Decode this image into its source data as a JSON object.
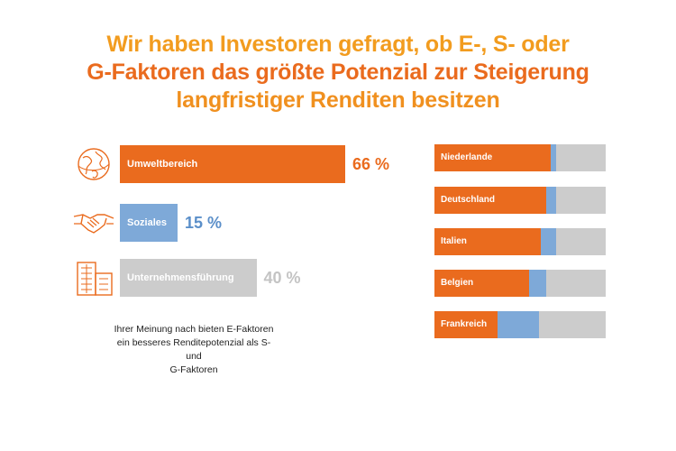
{
  "title": {
    "line1": "Wir haben Investoren gefragt, ob E-, S- oder",
    "line2": "G-Faktoren das größte Potenzial zur Steigerung",
    "line3": "langfristiger Renditen besitzen"
  },
  "note": {
    "line1": "Ihrer Meinung nach bieten E-Faktoren",
    "line2": "ein besseres Renditepotenzial als S- und",
    "line3": "G-Faktoren"
  },
  "colors": {
    "environment": "#ea6b1e",
    "social": "#7ea9d8",
    "governance": "#cccccc",
    "title_orange": "#f29c1f"
  },
  "chart_data": [
    {
      "type": "bar",
      "orientation": "horizontal",
      "categories": [
        "Umweltbereich",
        "Soziales",
        "Unternehmensführung"
      ],
      "values": [
        66,
        15,
        40
      ],
      "value_labels": [
        "66 %",
        "15 %",
        "40 %"
      ],
      "icons": [
        "globe-icon",
        "handshake-icon",
        "buildings-icon"
      ],
      "colors": [
        "#ea6b1e",
        "#7ea9d8",
        "#cccccc"
      ]
    },
    {
      "type": "bar",
      "orientation": "horizontal",
      "stacked": true,
      "categories": [
        "Niederlande",
        "Deutschland",
        "Italien",
        "Belgien",
        "Frankreich"
      ],
      "series": [
        {
          "values": [
            68,
            65,
            62,
            55,
            37
          ],
          "color": "#ea6b1e"
        },
        {
          "values": [
            3,
            6,
            9,
            10,
            24
          ],
          "color": "#7ea9d8"
        },
        {
          "values": [
            29,
            29,
            29,
            35,
            39
          ],
          "color": "#cccccc"
        }
      ]
    }
  ]
}
